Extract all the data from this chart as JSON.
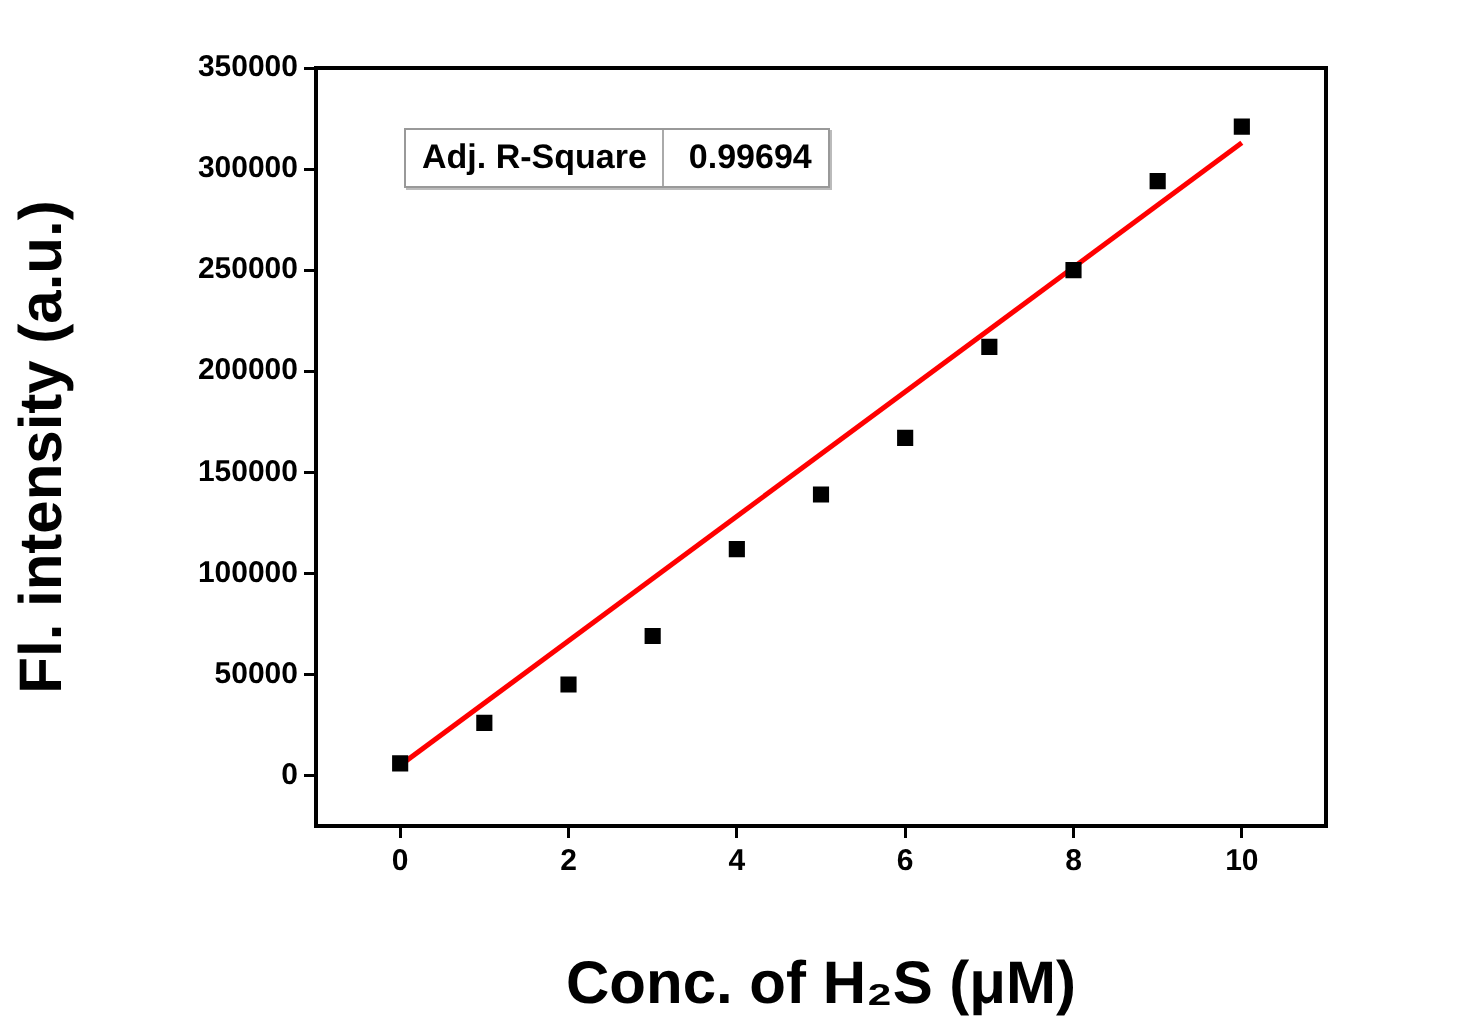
{
  "chart_data": {
    "type": "scatter",
    "xlabel": "Conc. of H₂S (μM)",
    "ylabel": "Fl. intensity (a.u.)",
    "xlim": [
      -1,
      11
    ],
    "xticks": [
      0,
      2,
      4,
      6,
      8,
      10
    ],
    "ylim": [
      -25000,
      350000
    ],
    "yticks": [
      0,
      50000,
      100000,
      150000,
      200000,
      250000,
      300000,
      350000
    ],
    "legend": false,
    "annotations": [
      "Adj. R-Square",
      "0.99694"
    ],
    "series": [
      {
        "color": "#000000",
        "marker": "square",
        "x": [
          0,
          1,
          2,
          3,
          4,
          5,
          6,
          7,
          8,
          9,
          10
        ],
        "values": [
          6000,
          26000,
          45000,
          69000,
          112000,
          139000,
          167000,
          212000,
          250000,
          294000,
          321000
        ]
      },
      {
        "type": "line",
        "color": "#ff0000",
        "marker": "none",
        "line_style": "solid",
        "x": [
          0,
          10
        ],
        "values": [
          5000,
          313000
        ]
      }
    ]
  }
}
